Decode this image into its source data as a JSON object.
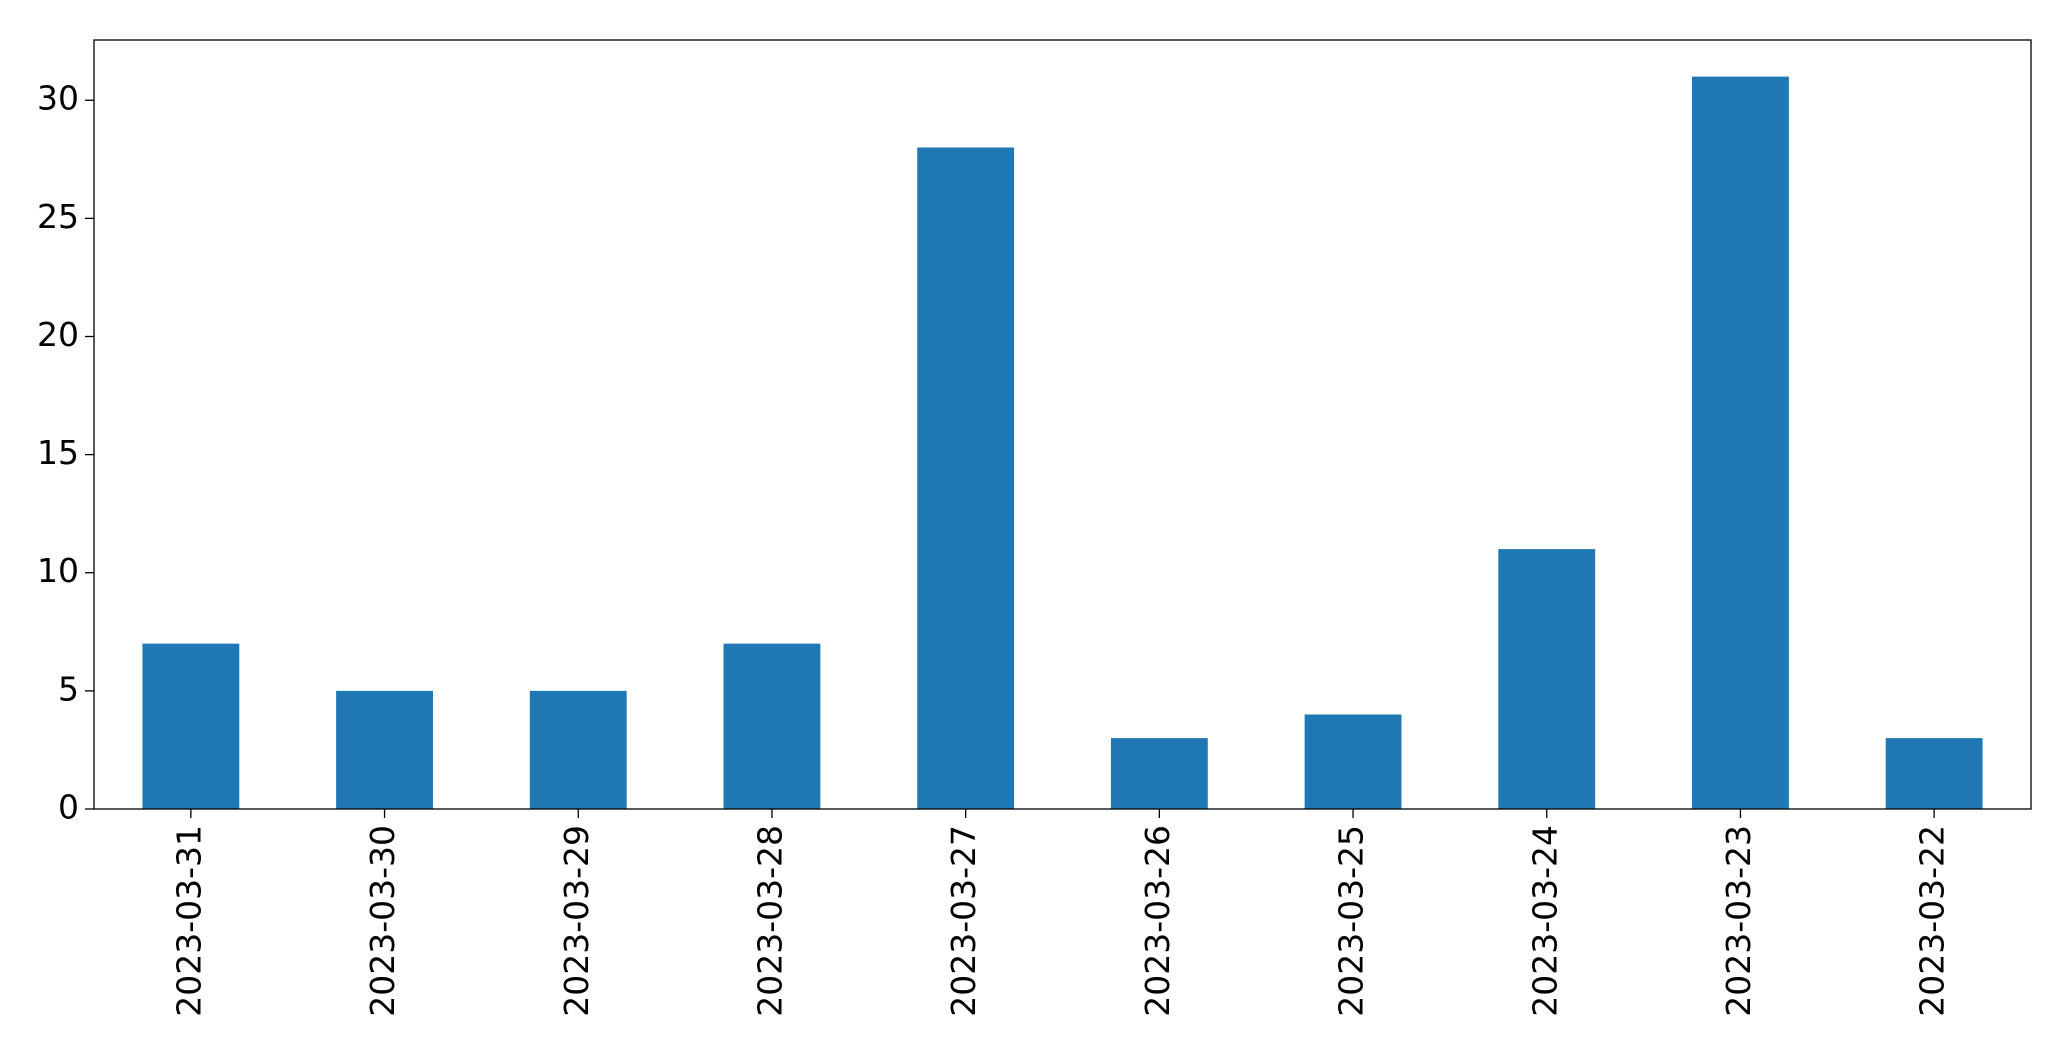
{
  "chart_data": {
    "type": "bar",
    "categories": [
      "2023-03-31",
      "2023-03-30",
      "2023-03-29",
      "2023-03-28",
      "2023-03-27",
      "2023-03-26",
      "2023-03-25",
      "2023-03-24",
      "2023-03-23",
      "2023-03-22"
    ],
    "values": [
      7,
      5,
      5,
      7,
      28,
      3,
      4,
      11,
      31,
      3
    ],
    "color": "#1f77b4",
    "ylim": [
      0,
      32.55
    ],
    "yticks": [
      0,
      5,
      10,
      15,
      20,
      25,
      30
    ],
    "grid": false
  }
}
